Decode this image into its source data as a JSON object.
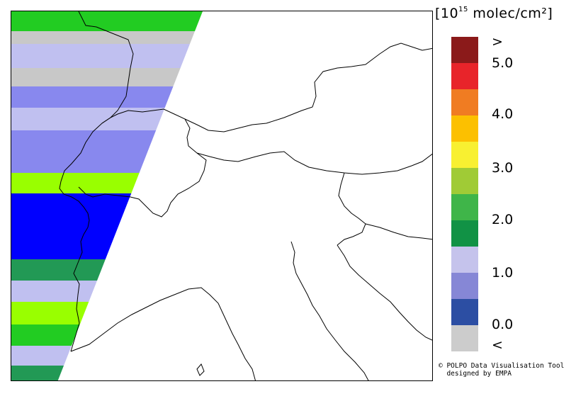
{
  "legend": {
    "unit_prefix": "[10",
    "unit_exponent": "15",
    "unit_suffix": " molec/cm²]",
    "colors": [
      "#8b1a1a",
      "#e8242a",
      "#f07c22",
      "#fcc000",
      "#f8f031",
      "#a0cb36",
      "#3fb549",
      "#119245",
      "#c5c3ec",
      "#8687d6",
      "#2c4ea3",
      "#cccccc"
    ],
    "labels": [
      ">",
      "5.0",
      "4.0",
      "3.0",
      "2.0",
      "1.0",
      "0.0",
      "<"
    ]
  },
  "credit": {
    "line1": "© POLPO Data Visualisation Tool",
    "line2": "  designed by EMPA"
  },
  "swath_colors": {
    "gray": "#c8c8c8",
    "lavender": "#c0c0f0",
    "blue_mid": "#8888ee",
    "blue": "#0000ff",
    "lime": "#99ff00",
    "green": "#22cc22",
    "dark_green": "#229955"
  }
}
